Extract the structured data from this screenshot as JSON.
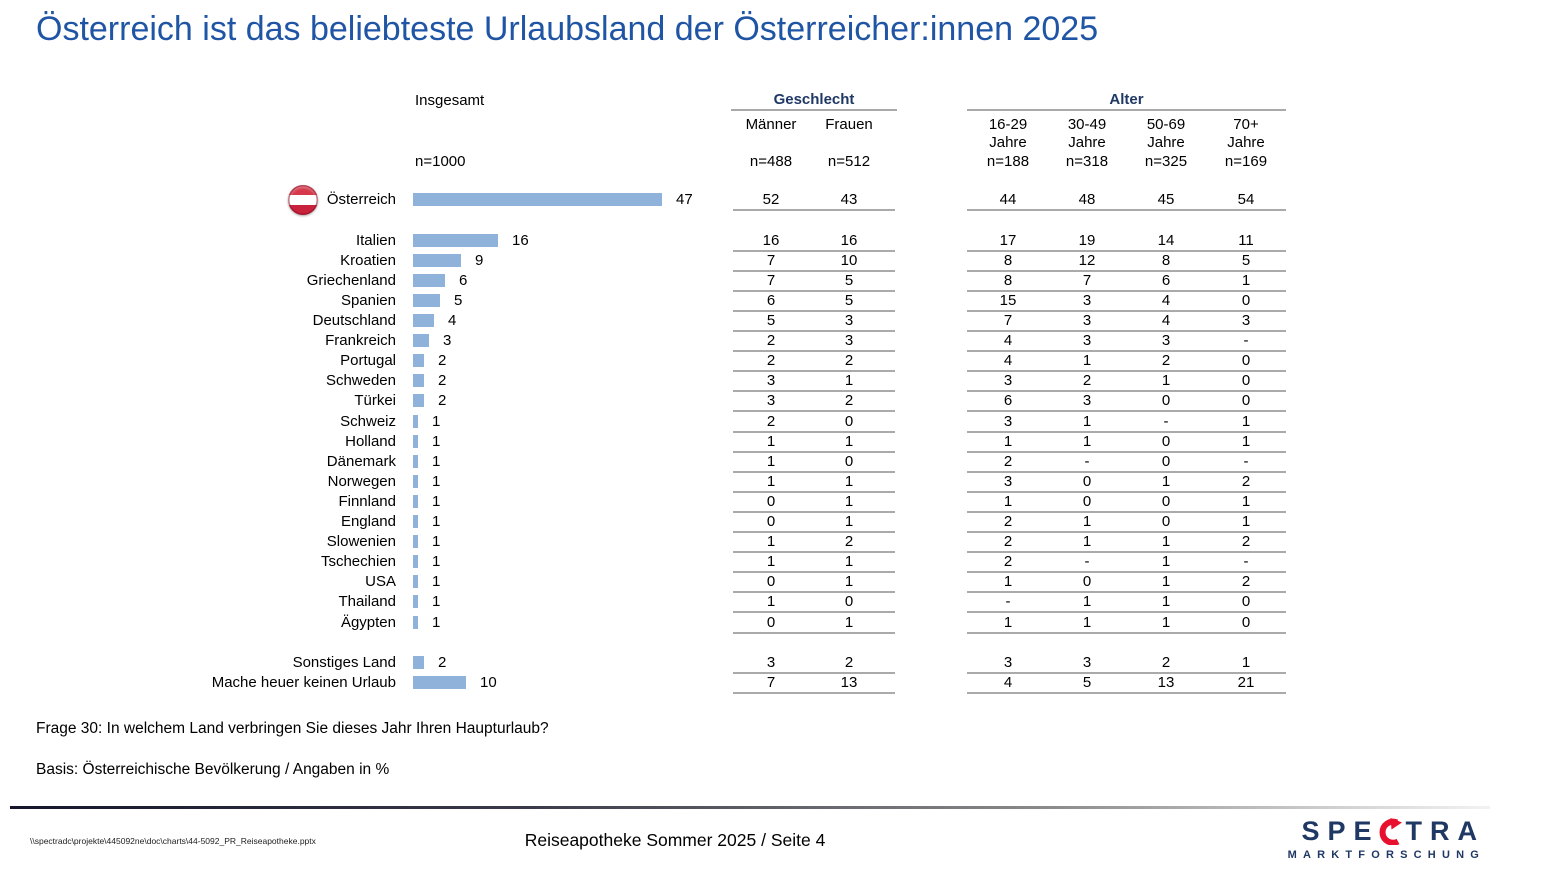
{
  "title": "Österreich ist das beliebteste Urlaubsland der Österreicher:innen 2025",
  "columns": {
    "insgesamt_label": "Insgesamt",
    "insgesamt_n": "n=1000",
    "geschlecht": {
      "label": "Geschlecht",
      "cols": [
        {
          "label": "Männer",
          "n": "n=488"
        },
        {
          "label": "Frauen",
          "n": "n=512"
        }
      ]
    },
    "alter": {
      "label": "Alter",
      "cols": [
        {
          "label": "16-29",
          "line2": "Jahre",
          "n": "n=188"
        },
        {
          "label": "30-49",
          "line2": "Jahre",
          "n": "n=318"
        },
        {
          "label": "50-69",
          "line2": "Jahre",
          "n": "n=325"
        },
        {
          "label": "70+",
          "line2": "Jahre",
          "n": "n=169"
        }
      ]
    }
  },
  "rows": [
    {
      "label": "Österreich",
      "flag": true,
      "value": 47,
      "cells": [
        "52",
        "43",
        "44",
        "48",
        "45",
        "54"
      ]
    },
    {
      "label": "Italien",
      "gap": true,
      "value": 16,
      "cells": [
        "16",
        "16",
        "17",
        "19",
        "14",
        "11"
      ]
    },
    {
      "label": "Kroatien",
      "value": 9,
      "cells": [
        "7",
        "10",
        "8",
        "12",
        "8",
        "5"
      ]
    },
    {
      "label": "Griechenland",
      "value": 6,
      "cells": [
        "7",
        "5",
        "8",
        "7",
        "6",
        "1"
      ]
    },
    {
      "label": "Spanien",
      "value": 5,
      "cells": [
        "6",
        "5",
        "15",
        "3",
        "4",
        "0"
      ]
    },
    {
      "label": "Deutschland",
      "value": 4,
      "cells": [
        "5",
        "3",
        "7",
        "3",
        "4",
        "3"
      ]
    },
    {
      "label": "Frankreich",
      "value": 3,
      "cells": [
        "2",
        "3",
        "4",
        "3",
        "3",
        "-"
      ]
    },
    {
      "label": "Portugal",
      "value": 2,
      "cells": [
        "2",
        "2",
        "4",
        "1",
        "2",
        "0"
      ]
    },
    {
      "label": "Schweden",
      "value": 2,
      "cells": [
        "3",
        "1",
        "3",
        "2",
        "1",
        "0"
      ]
    },
    {
      "label": "Türkei",
      "value": 2,
      "cells": [
        "3",
        "2",
        "6",
        "3",
        "0",
        "0"
      ]
    },
    {
      "label": "Schweiz",
      "value": 1,
      "cells": [
        "2",
        "0",
        "3",
        "1",
        "-",
        "1"
      ]
    },
    {
      "label": "Holland",
      "value": 1,
      "cells": [
        "1",
        "1",
        "1",
        "1",
        "0",
        "1"
      ]
    },
    {
      "label": "Dänemark",
      "value": 1,
      "cells": [
        "1",
        "0",
        "2",
        "-",
        "0",
        "-"
      ]
    },
    {
      "label": "Norwegen",
      "value": 1,
      "cells": [
        "1",
        "1",
        "3",
        "0",
        "1",
        "2"
      ]
    },
    {
      "label": "Finnland",
      "value": 1,
      "cells": [
        "0",
        "1",
        "1",
        "0",
        "0",
        "1"
      ]
    },
    {
      "label": "England",
      "value": 1,
      "cells": [
        "0",
        "1",
        "2",
        "1",
        "0",
        "1"
      ]
    },
    {
      "label": "Slowenien",
      "value": 1,
      "cells": [
        "1",
        "2",
        "2",
        "1",
        "1",
        "2"
      ]
    },
    {
      "label": "Tschechien",
      "value": 1,
      "cells": [
        "1",
        "1",
        "2",
        "-",
        "1",
        "-"
      ]
    },
    {
      "label": "USA",
      "value": 1,
      "cells": [
        "0",
        "1",
        "1",
        "0",
        "1",
        "2"
      ]
    },
    {
      "label": "Thailand",
      "value": 1,
      "cells": [
        "1",
        "0",
        "-",
        "1",
        "1",
        "0"
      ]
    },
    {
      "label": "Ägypten",
      "value": 1,
      "cells": [
        "0",
        "1",
        "1",
        "1",
        "1",
        "0"
      ]
    },
    {
      "label": "Sonstiges Land",
      "gap": true,
      "value": 2,
      "cells": [
        "3",
        "2",
        "3",
        "3",
        "2",
        "1"
      ]
    },
    {
      "label": "Mache heuer keinen Urlaub",
      "value": 10,
      "cells": [
        "7",
        "13",
        "4",
        "5",
        "13",
        "21"
      ]
    }
  ],
  "chart_data": {
    "type": "bar",
    "title": "Österreich ist das beliebteste Urlaubsland der Österreicher:innen 2025",
    "orientation": "horizontal",
    "unit": "%",
    "categories": [
      "Österreich",
      "Italien",
      "Kroatien",
      "Griechenland",
      "Spanien",
      "Deutschland",
      "Frankreich",
      "Portugal",
      "Schweden",
      "Türkei",
      "Schweiz",
      "Holland",
      "Dänemark",
      "Norwegen",
      "Finnland",
      "England",
      "Slowenien",
      "Tschechien",
      "USA",
      "Thailand",
      "Ägypten",
      "Sonstiges Land",
      "Mache heuer keinen Urlaub"
    ],
    "series": [
      {
        "name": "Insgesamt (n=1000)",
        "values": [
          47,
          16,
          9,
          6,
          5,
          4,
          3,
          2,
          2,
          2,
          1,
          1,
          1,
          1,
          1,
          1,
          1,
          1,
          1,
          1,
          1,
          2,
          10
        ]
      },
      {
        "name": "Männer (n=488)",
        "values": [
          52,
          16,
          7,
          7,
          6,
          5,
          2,
          2,
          3,
          3,
          2,
          1,
          1,
          1,
          0,
          0,
          1,
          1,
          0,
          1,
          0,
          3,
          7
        ]
      },
      {
        "name": "Frauen (n=512)",
        "values": [
          43,
          16,
          10,
          5,
          5,
          3,
          3,
          2,
          1,
          2,
          0,
          1,
          0,
          1,
          1,
          1,
          2,
          1,
          1,
          0,
          1,
          2,
          13
        ]
      },
      {
        "name": "16-29 Jahre (n=188)",
        "values": [
          44,
          17,
          8,
          8,
          15,
          7,
          4,
          4,
          3,
          6,
          3,
          1,
          2,
          3,
          1,
          2,
          2,
          2,
          1,
          "-",
          1,
          3,
          4
        ]
      },
      {
        "name": "30-49 Jahre (n=318)",
        "values": [
          48,
          19,
          12,
          7,
          3,
          3,
          3,
          1,
          2,
          3,
          1,
          1,
          "-",
          0,
          0,
          1,
          1,
          "-",
          0,
          1,
          1,
          3,
          5
        ]
      },
      {
        "name": "50-69 Jahre (n=325)",
        "values": [
          45,
          14,
          8,
          6,
          4,
          4,
          3,
          2,
          1,
          0,
          "-",
          0,
          0,
          1,
          0,
          0,
          1,
          1,
          1,
          1,
          1,
          2,
          13
        ]
      },
      {
        "name": "70+ Jahre (n=169)",
        "values": [
          54,
          11,
          5,
          1,
          0,
          3,
          "-",
          0,
          0,
          0,
          1,
          1,
          "-",
          2,
          1,
          1,
          2,
          "-",
          2,
          0,
          0,
          1,
          21
        ]
      }
    ],
    "xlim": [
      0,
      55
    ],
    "bar_color": "#8fb2da",
    "legend_position": "none",
    "grid": false
  },
  "footer": {
    "question": "Frage 30: In welchem Land verbringen Sie dieses Jahr Ihren Haupturlaub?",
    "basis": "Basis: Österreichische Bevölkerung / Angaben in %"
  },
  "bottombar": {
    "file_path": "\\\\spectradc\\projekte\\445092ne\\doc\\charts\\44-5092_PR_Reiseapotheke.pptx",
    "page_info": "Reiseapotheke Sommer 2025  /  Seite 4"
  },
  "logo": {
    "name_part1": "SPE",
    "name_part2": "TRA",
    "subtitle": "MARKTFORSCHUNG",
    "brand_navy": "#1f3864",
    "brand_red": "#e8112d"
  },
  "colors": {
    "title_blue": "#1f55a4",
    "header_navy": "#1f3864",
    "bar_blue": "#8fb2da",
    "rule_gray": "#aaaaaa"
  }
}
